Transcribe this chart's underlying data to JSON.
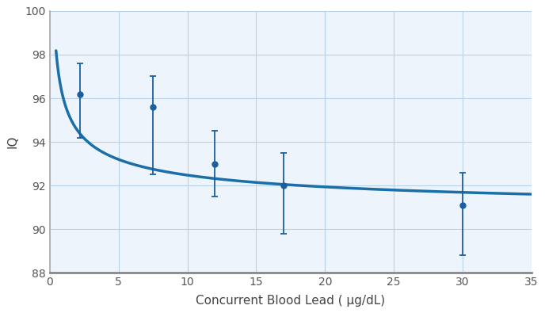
{
  "title": "",
  "xlabel": "Concurrent Blood Lead ( μg/dL)",
  "ylabel": "IQ",
  "xlim": [
    0,
    35
  ],
  "ylim": [
    88,
    100
  ],
  "xticks": [
    0,
    5,
    10,
    15,
    20,
    25,
    30,
    35
  ],
  "yticks": [
    88,
    90,
    92,
    94,
    96,
    98,
    100
  ],
  "scatter_x": [
    2.2,
    7.5,
    12,
    17,
    30
  ],
  "scatter_y": [
    96.2,
    95.6,
    93.0,
    92.0,
    91.1
  ],
  "yerr_upper": [
    1.4,
    1.4,
    1.5,
    1.5,
    1.5
  ],
  "yerr_lower": [
    2.0,
    3.1,
    1.5,
    2.2,
    2.3
  ],
  "curve_color": "#1a6fa8",
  "scatter_color": "#1a5fa0",
  "plot_bg_color": "#eef4fb",
  "figure_bg_color": "#ffffff",
  "grid_color": "#b8d0e8",
  "left_spine_color": "#aaaaaa",
  "bottom_spine_color": "#888888",
  "curve_x_start": 0.45,
  "curve_x_end": 35,
  "curve_c": 90.35,
  "curve_a": 5.6,
  "curve_b": 0.42,
  "label_fontsize": 11,
  "tick_fontsize": 10
}
